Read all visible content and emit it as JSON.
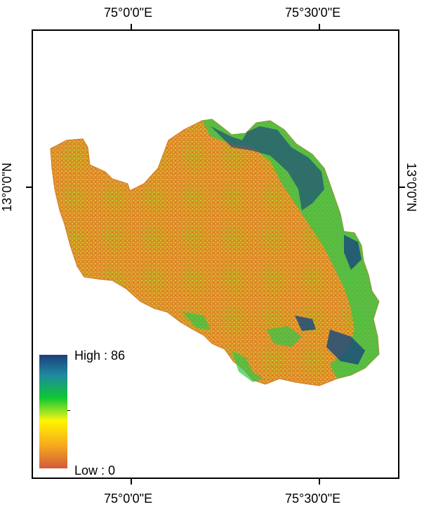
{
  "axes": {
    "top_labels": [
      "75°0'0\"E",
      "75°30'0\"E"
    ],
    "bottom_labels": [
      "75°0'0\"E",
      "75°30'0\"E"
    ],
    "left_label": "13°0'0\"N",
    "right_label": "13°0'0\"N"
  },
  "legend": {
    "high_label": "High : 86",
    "low_label": "Low : 0",
    "colors": [
      "#1c3f7b",
      "#1e8aa0",
      "#0fc832",
      "#c9ec1e",
      "#fff500",
      "#f6a81e",
      "#d25b3c"
    ]
  },
  "region": {
    "base_color": "#e08a2a",
    "mid_color": "#c9b824",
    "green_color": "#2fc84a",
    "high_color": "#1c4e7a"
  }
}
